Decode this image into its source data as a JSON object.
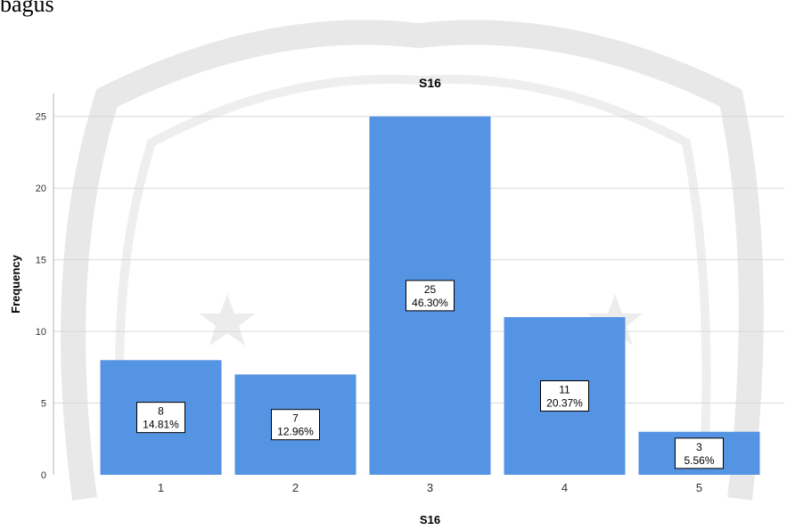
{
  "page": {
    "header_fragment": "bagus"
  },
  "chart_data": {
    "type": "bar",
    "title": "S16",
    "xlabel": "S16",
    "ylabel": "Frequency",
    "categories": [
      "1",
      "2",
      "3",
      "4",
      "5"
    ],
    "values": [
      8,
      7,
      25,
      11,
      3
    ],
    "percent_labels": [
      "14.81%",
      "12.96%",
      "46.30%",
      "20.37%",
      "5.56%"
    ],
    "yticks": [
      "0",
      "5",
      "10",
      "15",
      "20",
      "25"
    ],
    "ylim": [
      0,
      26.6
    ],
    "grid": true,
    "legend": "none",
    "bar_color": "#5593e3",
    "grid_color": "#d9d9d9"
  }
}
